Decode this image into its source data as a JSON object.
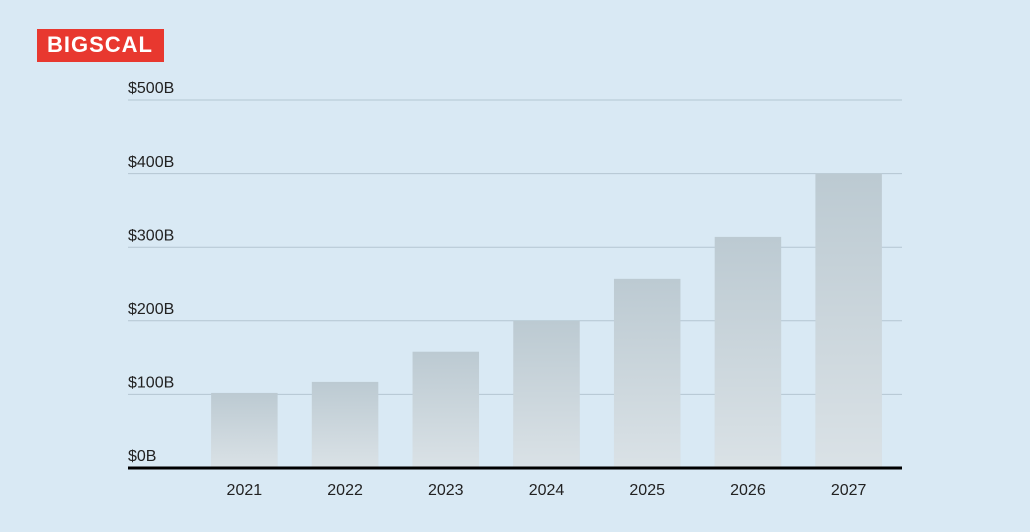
{
  "logo": "BIGSCAL",
  "chart_data": {
    "type": "bar",
    "categories": [
      "2021",
      "2022",
      "2023",
      "2024",
      "2025",
      "2026",
      "2027"
    ],
    "values": [
      102,
      117,
      158,
      200,
      257,
      314,
      400
    ],
    "color": "#bccad2",
    "ylim": [
      0,
      500
    ],
    "yticks": [
      {
        "value": 0,
        "label": "$0B"
      },
      {
        "value": 100,
        "label": "$100B"
      },
      {
        "value": 200,
        "label": "$200B"
      },
      {
        "value": 300,
        "label": "$300B"
      },
      {
        "value": 400,
        "label": "$400B"
      },
      {
        "value": 500,
        "label": "$500B"
      }
    ],
    "grid": true
  }
}
